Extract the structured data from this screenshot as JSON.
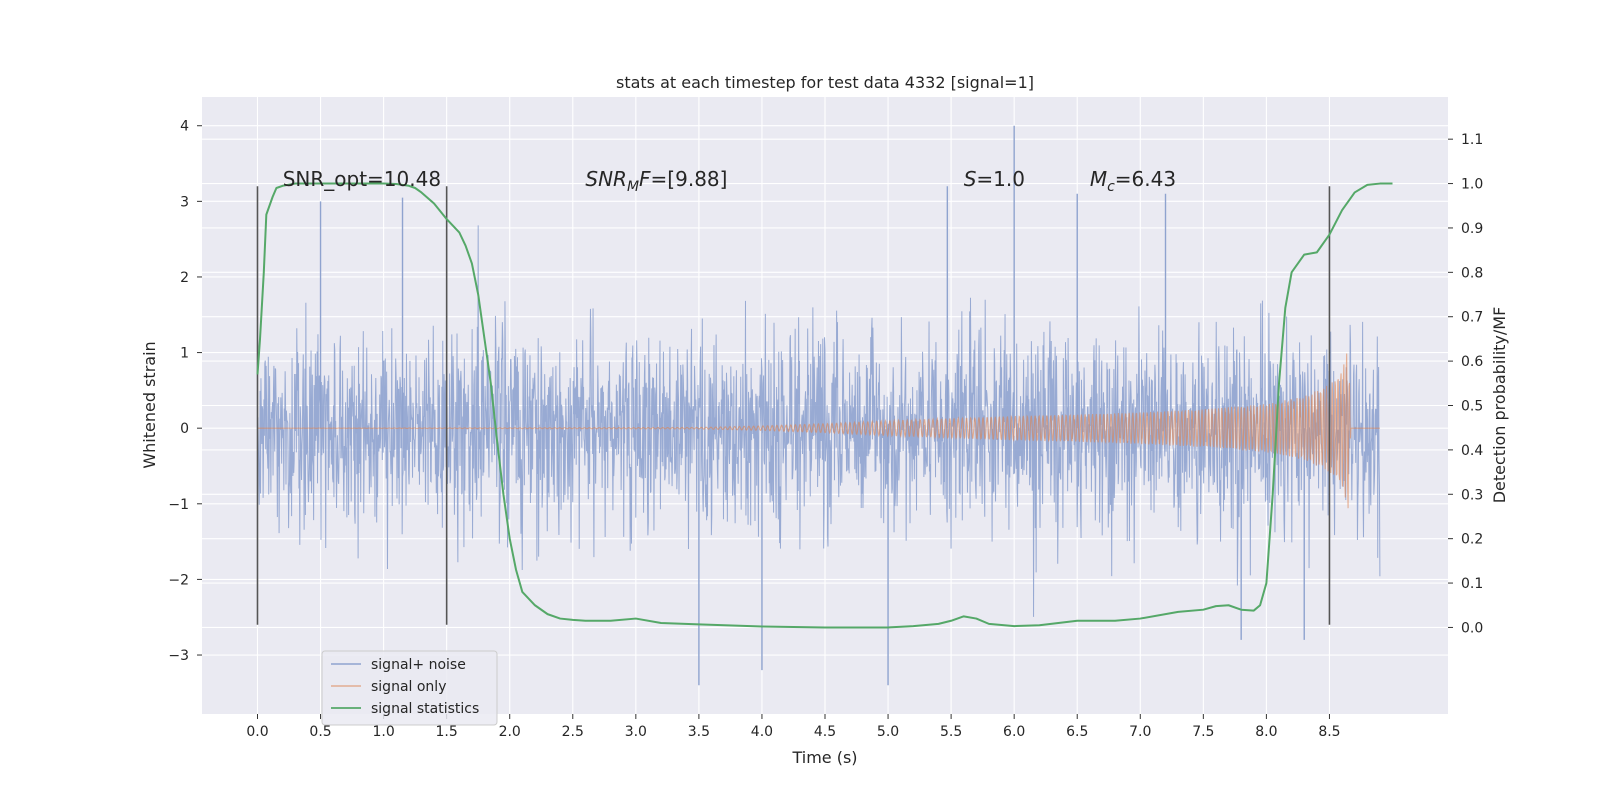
{
  "chart_data": {
    "type": "line",
    "title": "stats at each timestep for test data 4332 [signal=1]",
    "xlabel": "Time (s)",
    "ylabel": "Whitened strain",
    "ylabel_right": "Detection probability/MF",
    "xlim": [
      -0.44,
      9.44
    ],
    "ylim": [
      -3.78,
      4.38
    ],
    "ylim_right": [
      -0.195,
      1.195
    ],
    "x_ticks": [
      "0.0",
      "0.5",
      "1.0",
      "1.5",
      "2.0",
      "2.5",
      "3.0",
      "3.5",
      "4.0",
      "4.5",
      "5.0",
      "5.5",
      "6.0",
      "6.5",
      "7.0",
      "7.5",
      "8.0",
      "8.5"
    ],
    "x_tick_values": [
      0.0,
      0.5,
      1.0,
      1.5,
      2.0,
      2.5,
      3.0,
      3.5,
      4.0,
      4.5,
      5.0,
      5.5,
      6.0,
      6.5,
      7.0,
      7.5,
      8.0,
      8.5
    ],
    "y_ticks": [
      "4",
      "3",
      "2",
      "1",
      "0",
      "−1",
      "−2",
      "−3"
    ],
    "y_tick_values": [
      4,
      3,
      2,
      1,
      0,
      -1,
      -2,
      -3
    ],
    "y_right_ticks": [
      "1.1",
      "1.0",
      "0.9",
      "0.8",
      "0.7",
      "0.6",
      "0.5",
      "0.4",
      "0.3",
      "0.2",
      "0.1",
      "0.0"
    ],
    "y_right_tick_values": [
      1.1,
      1.0,
      0.9,
      0.8,
      0.7,
      0.6,
      0.5,
      0.4,
      0.3,
      0.2,
      0.1,
      0.0
    ],
    "grid": true,
    "legend_position": "lower-left",
    "series": [
      {
        "name": "signal+ noise",
        "color": "#8fa3cf",
        "axis": "left",
        "x_range": [
          0.0,
          8.9
        ],
        "amplitude_typical": 1.5,
        "peak_points": [
          [
            0.5,
            3.0
          ],
          [
            1.15,
            3.05
          ],
          [
            5.47,
            3.2
          ],
          [
            6.0,
            4.0
          ],
          [
            6.5,
            3.1
          ],
          [
            7.2,
            3.1
          ],
          [
            5.0,
            -3.4
          ],
          [
            3.5,
            -3.4
          ],
          [
            4.0,
            -3.2
          ],
          [
            7.8,
            -2.8
          ],
          [
            8.3,
            -2.8
          ]
        ]
      },
      {
        "name": "signal only",
        "color": "#dd8452",
        "axis": "left",
        "x_range": [
          0.0,
          8.9
        ],
        "envelope": [
          [
            0.0,
            0.0
          ],
          [
            3.5,
            0.01
          ],
          [
            4.0,
            0.03
          ],
          [
            4.5,
            0.06
          ],
          [
            5.0,
            0.1
          ],
          [
            5.5,
            0.13
          ],
          [
            6.0,
            0.16
          ],
          [
            6.5,
            0.18
          ],
          [
            7.0,
            0.21
          ],
          [
            7.5,
            0.25
          ],
          [
            8.0,
            0.32
          ],
          [
            8.3,
            0.42
          ],
          [
            8.5,
            0.58
          ],
          [
            8.6,
            0.8
          ],
          [
            8.65,
            1.1
          ],
          [
            8.67,
            0.0
          ],
          [
            8.9,
            0.0
          ]
        ]
      },
      {
        "name": "signal statistics",
        "color": "#55a868",
        "axis": "right",
        "x": [
          0.0,
          0.02,
          0.05,
          0.07,
          0.12,
          0.15,
          0.2,
          0.3,
          0.5,
          0.8,
          1.0,
          1.1,
          1.2,
          1.25,
          1.3,
          1.4,
          1.5,
          1.6,
          1.65,
          1.7,
          1.75,
          1.8,
          1.85,
          1.9,
          1.95,
          2.0,
          2.05,
          2.1,
          2.2,
          2.3,
          2.4,
          2.5,
          2.6,
          2.8,
          3.0,
          3.2,
          3.5,
          4.0,
          4.5,
          5.0,
          5.2,
          5.4,
          5.5,
          5.6,
          5.7,
          5.8,
          6.0,
          6.2,
          6.5,
          6.8,
          7.0,
          7.3,
          7.5,
          7.6,
          7.7,
          7.8,
          7.9,
          7.95,
          8.0,
          8.05,
          8.1,
          8.15,
          8.2,
          8.3,
          8.4,
          8.5,
          8.6,
          8.7,
          8.8,
          8.9,
          9.0
        ],
        "y": [
          0.57,
          0.65,
          0.8,
          0.93,
          0.97,
          0.99,
          0.995,
          1.0,
          1.0,
          1.0,
          1.0,
          0.999,
          0.995,
          0.99,
          0.98,
          0.955,
          0.92,
          0.89,
          0.86,
          0.82,
          0.75,
          0.65,
          0.55,
          0.42,
          0.3,
          0.2,
          0.13,
          0.08,
          0.05,
          0.03,
          0.02,
          0.017,
          0.015,
          0.015,
          0.02,
          0.01,
          0.007,
          0.002,
          0.0,
          0.0,
          0.003,
          0.008,
          0.015,
          0.025,
          0.02,
          0.008,
          0.003,
          0.005,
          0.015,
          0.015,
          0.02,
          0.035,
          0.04,
          0.048,
          0.05,
          0.04,
          0.038,
          0.05,
          0.1,
          0.3,
          0.55,
          0.72,
          0.8,
          0.84,
          0.845,
          0.885,
          0.94,
          0.98,
          0.997,
          1.0,
          1.0
        ]
      }
    ],
    "vertical_lines": [
      {
        "x": 0.0,
        "y_range": [
          -2.6,
          3.2
        ]
      },
      {
        "x": 1.5,
        "y_range": [
          -2.6,
          3.2
        ]
      },
      {
        "x": 8.5,
        "y_range": [
          -2.6,
          3.2
        ]
      }
    ],
    "annotations": [
      {
        "id": "snr-opt",
        "parts": [
          {
            "t": "SNR_opt=10.48",
            "style": "normal"
          }
        ],
        "x": 0.2,
        "y": 3.2
      },
      {
        "id": "snr-mf",
        "parts": [
          {
            "t": "SNR",
            "style": "italic"
          },
          {
            "t": "M",
            "style": "italic-sub"
          },
          {
            "t": "F",
            "style": "italic"
          },
          {
            "t": "=[9.88]",
            "style": "normal"
          }
        ],
        "x": 2.6,
        "y": 3.2
      },
      {
        "id": "s-value",
        "parts": [
          {
            "t": "S",
            "style": "italic"
          },
          {
            "t": "=1.0",
            "style": "normal"
          }
        ],
        "x": 5.6,
        "y": 3.2
      },
      {
        "id": "mc-value",
        "parts": [
          {
            "t": "M",
            "style": "italic"
          },
          {
            "t": "c",
            "style": "italic-sub"
          },
          {
            "t": "=6.43",
            "style": "normal"
          }
        ],
        "x": 6.6,
        "y": 3.2
      }
    ]
  }
}
